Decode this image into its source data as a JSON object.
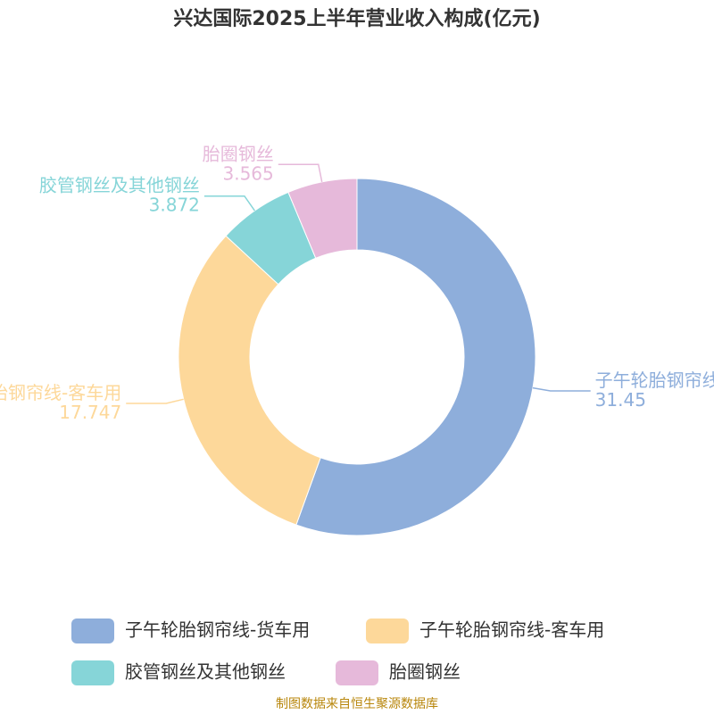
{
  "chart_data": {
    "type": "donut",
    "title": "兴达国际2025上半年营业收入构成(亿元)",
    "categories": [
      "子午轮胎钢帘线-货车用",
      "子午轮胎钢帘线-客车用",
      "胶管钢丝及其他钢丝",
      "胎圈钢丝"
    ],
    "values": [
      31.45,
      17.747,
      3.872,
      3.565
    ],
    "colors": [
      "#8eaedb",
      "#fdd89a",
      "#86d5d8",
      "#e6b9da"
    ],
    "source": "制图数据来自恒生聚源数据库"
  }
}
